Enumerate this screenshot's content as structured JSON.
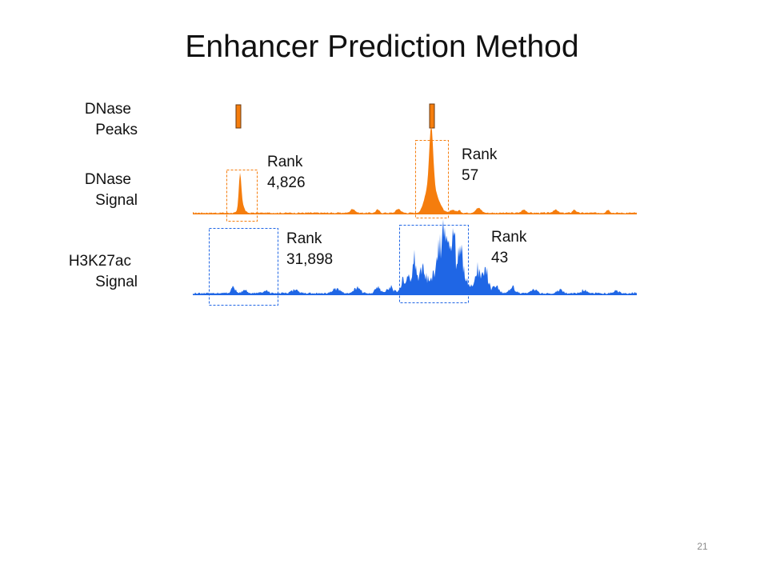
{
  "slide": {
    "title": "Enhancer Prediction Method",
    "page_number": "21"
  },
  "tracks": [
    {
      "id": "dnase-peaks",
      "line1": "DNase",
      "line2": "Peaks"
    },
    {
      "id": "dnase-signal",
      "line1": "DNase",
      "line2": "Signal"
    },
    {
      "id": "h3k27ac-signal",
      "line1": "H3K27ac",
      "line2": "Signal"
    }
  ],
  "ranks": [
    {
      "id": "dnase-left",
      "word": "Rank",
      "value": "4,826"
    },
    {
      "id": "dnase-right",
      "word": "Rank",
      "value": "57"
    },
    {
      "id": "h3k27ac-left",
      "word": "Rank",
      "value": "31,898"
    },
    {
      "id": "h3k27ac-right",
      "word": "Rank",
      "value": "43"
    }
  ],
  "colors": {
    "dnase": "#f57d0d",
    "h3k27ac": "#1f66e5",
    "peak_outline": "#6b3a10",
    "text": "#111111"
  }
}
